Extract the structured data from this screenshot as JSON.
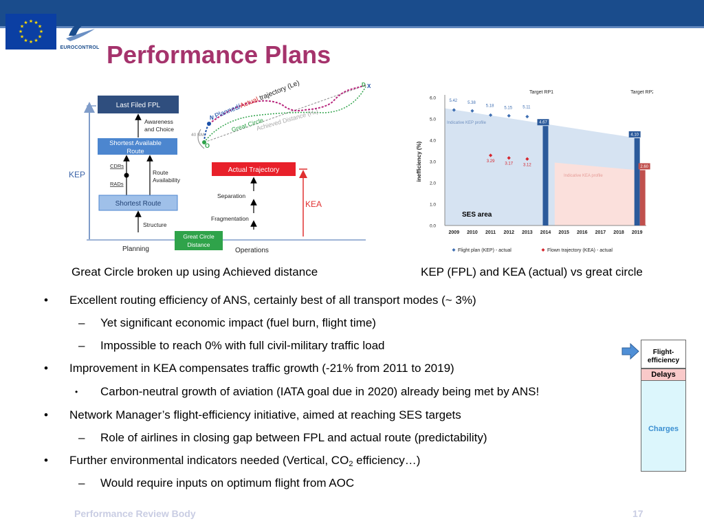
{
  "header": {
    "title": "Performance Plans",
    "logo_text": "EUROCONTROL",
    "brand_color": "#1a4c8c",
    "title_color": "#a5336c",
    "icons": [
      "eu-flag-icon",
      "eurocontrol-logo-icon"
    ]
  },
  "diagram": {
    "labels": {
      "last_filed": "Last Filed FPL",
      "awareness_1": "Awareness",
      "awareness_2": "and Choice",
      "shortest_available_1": "Shortest Available",
      "shortest_available_2": "Route",
      "cdrs": "CDRs",
      "rads": "RADs",
      "route_avail_1": "Route",
      "route_avail_2": "Availability",
      "kep": "KEP",
      "shortest_route": "Shortest Route",
      "structure": "Structure",
      "great_circle_1": "Great Circle",
      "great_circle_2": "Distance",
      "planning": "Planning",
      "operations": "Operations",
      "actual_trajectory": "Actual Trajectory",
      "separation": "Separation",
      "fragmentation": "Fragmentation",
      "kea": "KEA",
      "planned": "Planned/",
      "actual": "Actual",
      "trajectory_le": " trajectory (Le)",
      "great_circle_map": "Great Circle",
      "achieved_distance": "Achieved Distance (H",
      "achieved_sub": "a",
      "achieved_end": ")",
      "nm40": "40 NM",
      "point_n": "N",
      "point_o": "O",
      "point_a": "A",
      "point_d": "D",
      "point_x": "X"
    },
    "caption": "Great Circle broken up using Achieved distance"
  },
  "chart_data": {
    "type": "scatter",
    "title": "",
    "ylabel": "inefficiency (%)",
    "xlabel": "",
    "ylim": [
      0,
      6
    ],
    "y_ticks": [
      "0.0",
      "1.0",
      "2.0",
      "3.0",
      "4.0",
      "5.0",
      "6.0"
    ],
    "categories": [
      "2009",
      "2010",
      "2011",
      "2012",
      "2013",
      "2014",
      "2015",
      "2016",
      "2017",
      "2018",
      "2019"
    ],
    "series": [
      {
        "name": "Flight plan (KEP) - actual",
        "color": "#3f6fb2",
        "x": [
          "2009",
          "2010",
          "2011",
          "2012",
          "2013"
        ],
        "values": [
          5.42,
          5.38,
          5.18,
          5.15,
          5.11
        ],
        "labels": [
          "5.42",
          "5.38",
          "5.18",
          "5.15",
          "5.11"
        ]
      },
      {
        "name": "Flown trajectory (KEA) - actual",
        "color": "#d6252d",
        "x": [
          "2011",
          "2012",
          "2013"
        ],
        "values": [
          3.29,
          3.17,
          3.12
        ],
        "labels": [
          "3.29",
          "3.17",
          "3.12"
        ]
      }
    ],
    "targets": [
      {
        "name": "Target RP1",
        "x": "2014",
        "value": 4.67,
        "label": "4.67",
        "color": "#2b5a9b"
      },
      {
        "name": "Target RP2",
        "x": "2019",
        "value": 4.1,
        "label": "4.10",
        "color": "#2b5a9b"
      },
      {
        "name": "Target RP2 KEA",
        "x": "2019",
        "value": 2.6,
        "label": "2.60",
        "color": "#c0504d"
      }
    ],
    "target_labels": [
      "Target RP1",
      "Target RP2"
    ],
    "area_labels": [
      "Indicative KEP profile",
      "Indicative KEA profile"
    ],
    "region_label": "SES area",
    "kep_profile": {
      "from": [
        "2009",
        5.5
      ],
      "to": [
        "2019",
        4.1
      ]
    },
    "kea_profile": {
      "from": [
        "2015",
        2.95
      ],
      "to": [
        "2019",
        2.6
      ]
    },
    "legend_placement": "bottom",
    "grid": false,
    "caption": "KEP (FPL) and KEA (actual) vs great circle"
  },
  "bullets": [
    {
      "level": 1,
      "marker": "•",
      "text": "Excellent routing efficiency of ANS, certainly best of all transport modes (~ 3%)"
    },
    {
      "level": 2,
      "marker": "–",
      "text": "Yet significant economic impact (fuel burn, flight time)"
    },
    {
      "level": 2,
      "marker": "–",
      "text": "Impossible to reach 0% with full civil-military traffic load"
    },
    {
      "level": 1,
      "marker": "•",
      "text": "Improvement in KEA compensates traffic growth (-21% from 2011 to 2019)"
    },
    {
      "level": 2,
      "marker": "•",
      "text": "Carbon-neutral growth of aviation (IATA goal due in 2020) already being met by ANS!"
    },
    {
      "level": 1,
      "marker": "•",
      "text": "Network Manager’s flight-efficiency initiative, aimed at reaching SES targets"
    },
    {
      "level": 2,
      "marker": "–",
      "text": "Role of airlines in closing gap between FPL and actual route (predictability)"
    },
    {
      "level": 1,
      "marker": "•",
      "text_before": "Further environmental indicators needed (Vertical, CO",
      "text_sub": "2",
      "text_after": " efficiency…)"
    },
    {
      "level": 2,
      "marker": "–",
      "text": "Would require inputs on optimum flight from AOC"
    }
  ],
  "side_panel": {
    "flight_efficiency": "Flight-efficiency",
    "delays": "Delays",
    "charges": "Charges",
    "colors": {
      "flight_efficiency": "#ffffff",
      "delays": "#f9c9c9",
      "charges": "#dcf6fc",
      "charges_text": "#3b8fd1"
    }
  },
  "footer": {
    "left": "Performance Review Body",
    "page": "17"
  }
}
